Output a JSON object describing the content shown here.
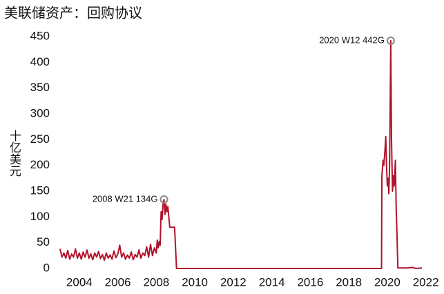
{
  "chart_data": {
    "type": "line",
    "title": "美联储资产：回购协议",
    "y_label": "十亿美元",
    "x": [
      2003.0,
      2003.1,
      2003.2,
      2003.3,
      2003.4,
      2003.5,
      2003.6,
      2003.7,
      2003.8,
      2003.9,
      2004.0,
      2004.1,
      2004.2,
      2004.3,
      2004.4,
      2004.5,
      2004.6,
      2004.7,
      2004.8,
      2004.9,
      2005.0,
      2005.1,
      2005.2,
      2005.3,
      2005.4,
      2005.5,
      2005.6,
      2005.7,
      2005.8,
      2005.9,
      2006.0,
      2006.1,
      2006.2,
      2006.3,
      2006.4,
      2006.5,
      2006.6,
      2006.7,
      2006.8,
      2006.9,
      2007.0,
      2007.1,
      2007.2,
      2007.3,
      2007.4,
      2007.5,
      2007.6,
      2007.7,
      2007.8,
      2007.9,
      2008.0,
      2008.05,
      2008.1,
      2008.15,
      2008.2,
      2008.25,
      2008.3,
      2008.35,
      2008.4,
      2008.45,
      2008.5,
      2008.55,
      2008.6,
      2008.65,
      2008.7,
      2008.95,
      2009.0,
      2009.05,
      2019.7,
      2019.72,
      2019.78,
      2019.82,
      2019.88,
      2019.92,
      2019.96,
      2020.0,
      2020.05,
      2020.08,
      2020.12,
      2020.18,
      2020.22,
      2020.27,
      2020.32,
      2020.36,
      2020.42,
      2020.46,
      2020.5,
      2020.55,
      2021.0,
      2021.3,
      2021.5,
      2021.8
    ],
    "series": [
      {
        "name": "回购协议",
        "color": "#b0132b",
        "values": [
          38,
          22,
          30,
          20,
          35,
          18,
          28,
          22,
          38,
          20,
          30,
          18,
          32,
          22,
          36,
          20,
          28,
          17,
          30,
          22,
          33,
          19,
          27,
          16,
          30,
          20,
          26,
          18,
          34,
          21,
          28,
          45,
          22,
          30,
          18,
          26,
          20,
          32,
          17,
          27,
          22,
          36,
          20,
          30,
          25,
          42,
          22,
          47,
          25,
          40,
          30,
          55,
          40,
          52,
          45,
          110,
          95,
          125,
          134,
          105,
          125,
          110,
          120,
          100,
          80,
          80,
          40,
          0,
          0,
          180,
          210,
          200,
          230,
          256,
          200,
          160,
          175,
          145,
          200,
          442,
          250,
          150,
          180,
          160,
          210,
          120,
          70,
          1,
          1,
          2,
          0,
          1
        ]
      }
    ],
    "xlim": [
      2002.75,
      2022.3
    ],
    "ylim": [
      0,
      450
    ],
    "xticks": [
      2004,
      2006,
      2008,
      2010,
      2012,
      2014,
      2016,
      2018,
      2020,
      2022
    ],
    "yticks": [
      0,
      50,
      100,
      150,
      200,
      250,
      300,
      350,
      400,
      450
    ],
    "annotations": [
      {
        "text": "2008 W21 134G",
        "x": 2008.4,
        "y": 134
      },
      {
        "text": "2020 W12 442G",
        "x": 2020.18,
        "y": 442
      }
    ]
  }
}
